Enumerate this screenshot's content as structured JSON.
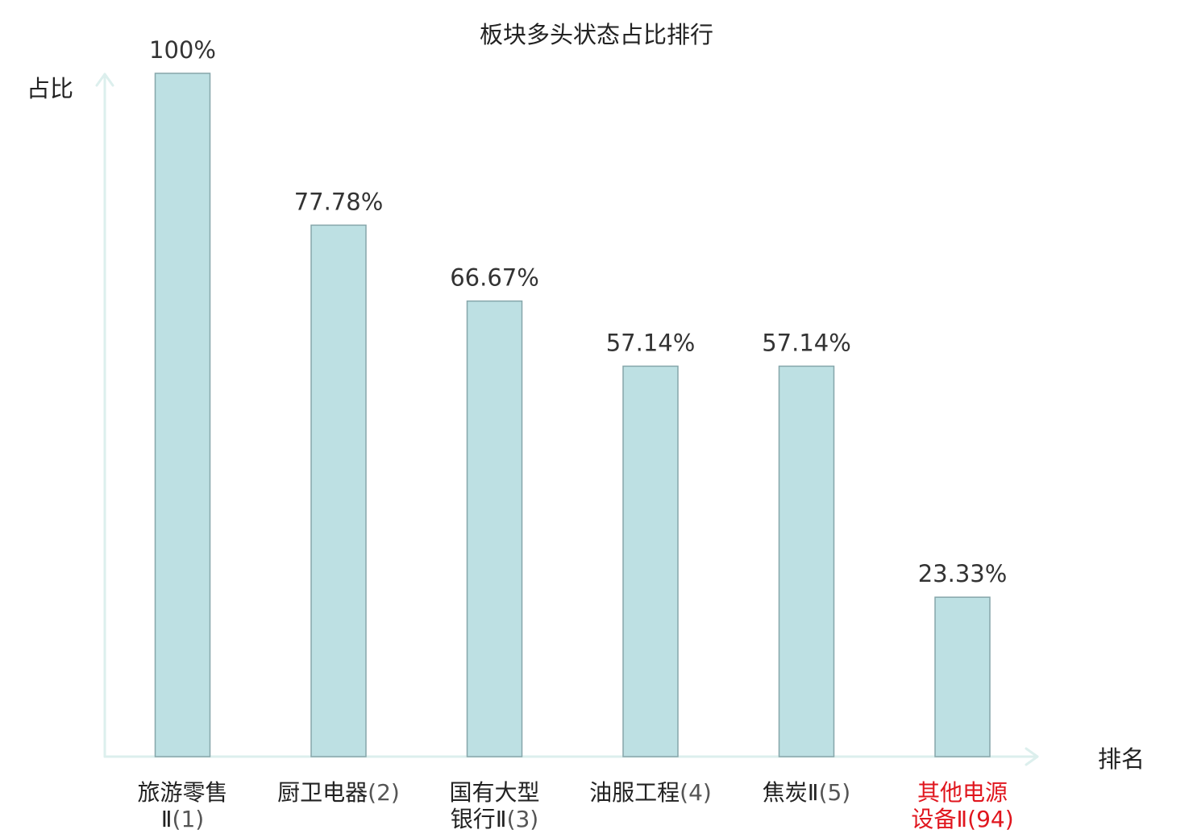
{
  "chart_data": {
    "type": "bar",
    "title": "板块多头状态占比排行",
    "ylabel": "占比",
    "xlabel": "排名",
    "ylim": [
      0,
      100
    ],
    "categories": [
      {
        "name_lines": [
          "旅游零售",
          "Ⅱ"
        ],
        "rank": "(1)",
        "highlight": false
      },
      {
        "name_lines": [
          "厨卫电器"
        ],
        "rank": "(2)",
        "highlight": false
      },
      {
        "name_lines": [
          "国有大型",
          "银行Ⅱ"
        ],
        "rank": "(3)",
        "highlight": false
      },
      {
        "name_lines": [
          "油服工程"
        ],
        "rank": "(4)",
        "highlight": false
      },
      {
        "name_lines": [
          "焦炭Ⅱ"
        ],
        "rank": "(5)",
        "highlight": false
      },
      {
        "name_lines": [
          "其他电源",
          "设备Ⅱ"
        ],
        "rank": "(94)",
        "highlight": true
      }
    ],
    "values": [
      100,
      77.78,
      66.67,
      57.14,
      57.14,
      23.33
    ],
    "value_labels": [
      "100%",
      "77.78%",
      "66.67%",
      "57.14%",
      "57.14%",
      "23.33%"
    ],
    "grid": false,
    "legend": "none",
    "colors": {
      "bar_fill": "#bde0e3",
      "bar_stroke": "#86a6aa",
      "axis": "#dcefed",
      "highlight_text": "#e0161e"
    }
  }
}
